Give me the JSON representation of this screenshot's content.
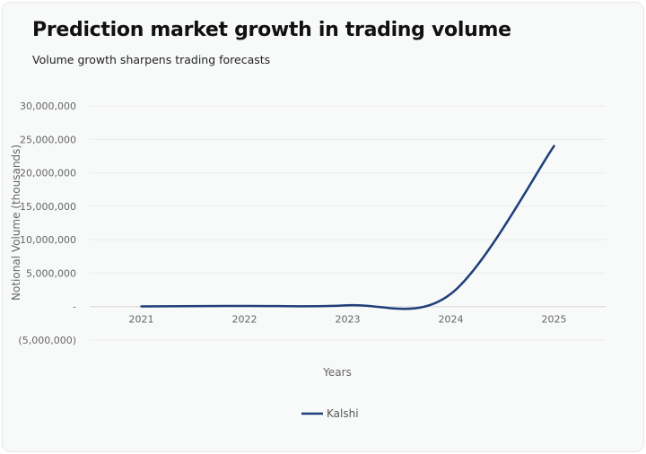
{
  "header": {
    "title": "Prediction market growth in trading volume",
    "subtitle": "Volume growth sharpens trading forecasts"
  },
  "chart_data": {
    "type": "line",
    "title": "Prediction market growth in trading volume",
    "subtitle": "Volume growth sharpens trading forecasts",
    "xlabel": "Years",
    "ylabel": "Notional Volume (thousands)",
    "categories": [
      "2021",
      "2022",
      "2023",
      "2024",
      "2025"
    ],
    "series": [
      {
        "name": "Kalshi",
        "values": [
          30000,
          100000,
          200000,
          1900000,
          24000000
        ],
        "color": "#1f3f7a"
      }
    ],
    "ylim": [
      -5000000,
      30000000
    ],
    "yticks": [
      30000000,
      25000000,
      20000000,
      15000000,
      10000000,
      5000000,
      0,
      -5000000
    ],
    "ytick_labels": [
      "30,000,000",
      "25,000,000",
      "20,000,000",
      "15,000,000",
      "10,000,000",
      "5,000,000",
      "-",
      "(5,000,000)"
    ],
    "grid": true,
    "smooth": true,
    "legend": "bottom"
  }
}
